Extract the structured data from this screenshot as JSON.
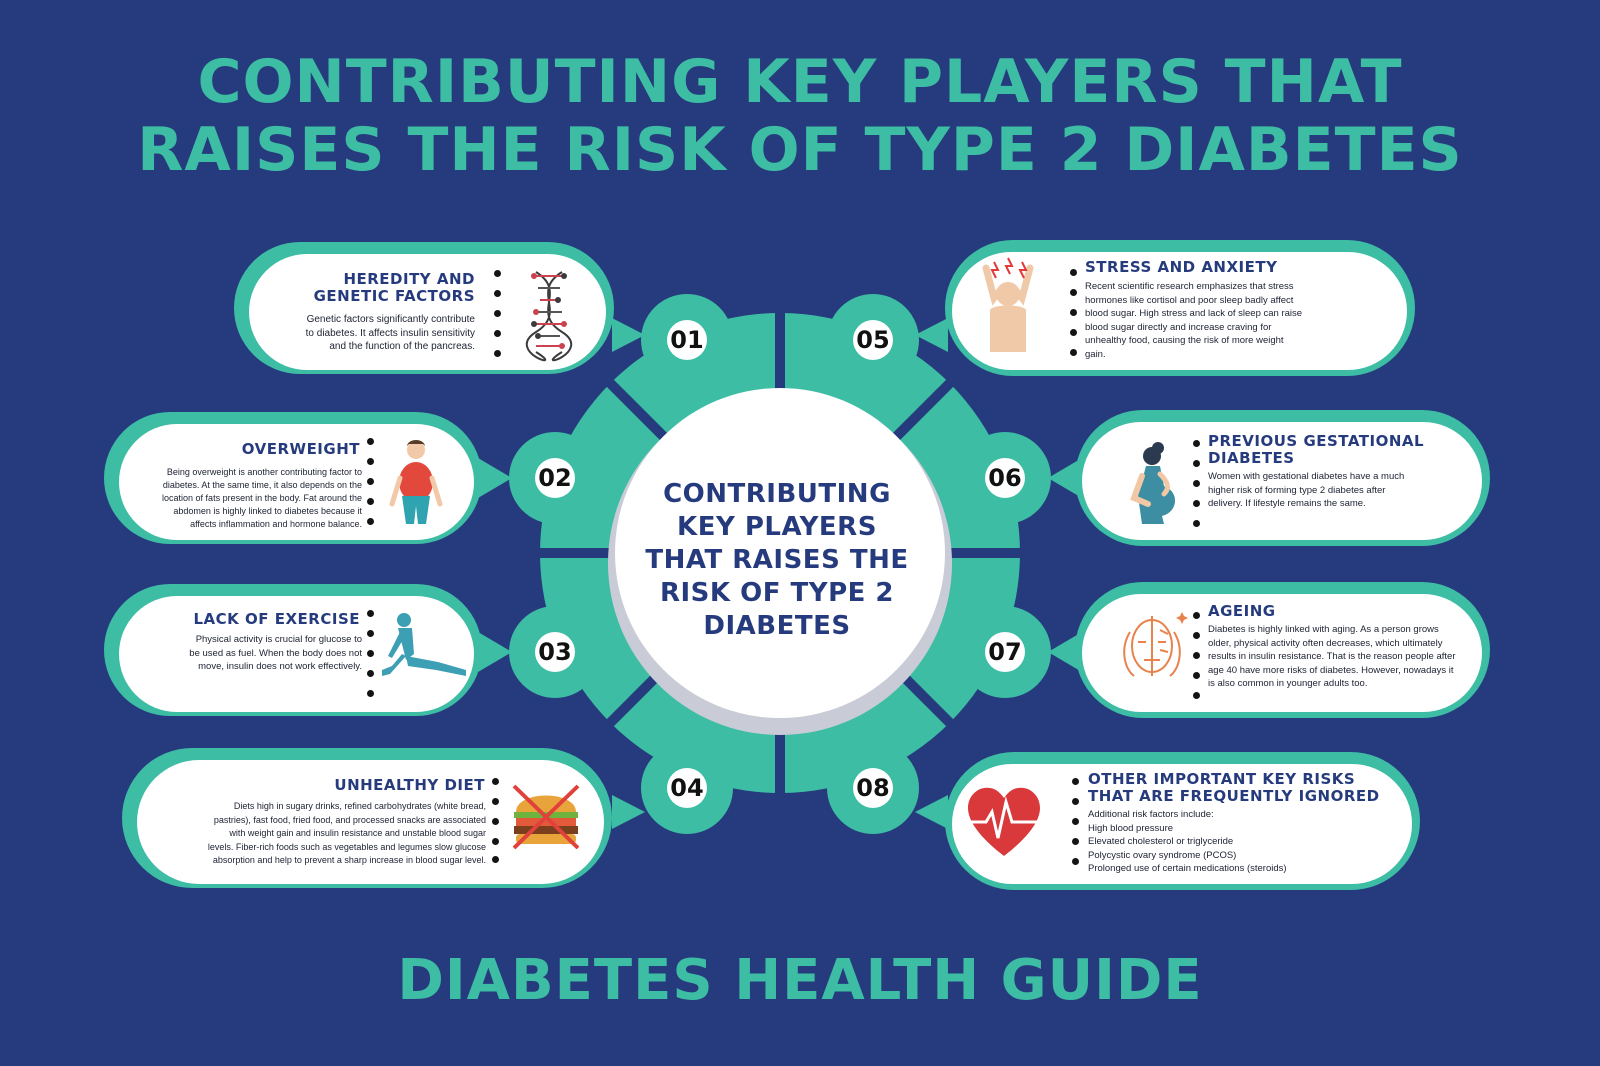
{
  "header": {
    "title_line1": "CONTRIBUTING KEY PLAYERS THAT",
    "title_line2": "RAISES THE RISK OF TYPE 2 DIABETES"
  },
  "center": {
    "lines": [
      "CONTRIBUTING",
      "KEY PLAYERS",
      "THAT RAISES THE",
      "RISK OF TYPE 2",
      "DIABETES"
    ]
  },
  "factors": [
    {
      "number": "01",
      "title_lines": [
        "HEREDITY AND",
        "GENETIC FACTORS"
      ],
      "icon": "dna-icon",
      "text_lines": [
        "Genetic factors significantly contribute",
        "to diabetes. It affects insulin sensitivity",
        "and the function of the pancreas."
      ]
    },
    {
      "number": "02",
      "title_lines": [
        "OVERWEIGHT"
      ],
      "icon": "overweight-person-icon",
      "text_lines": [
        "Being overweight is another contributing factor to",
        "diabetes. At the same time, it also depends on the",
        "location of fats present in the body. Fat around the",
        "abdomen is highly linked to diabetes because it",
        "affects inflammation and hormone balance."
      ]
    },
    {
      "number": "03",
      "title_lines": [
        "LACK OF EXERCISE"
      ],
      "icon": "stretching-person-icon",
      "text_lines": [
        "Physical activity is crucial for glucose to",
        "be used as fuel. When the body does not",
        "move, insulin does not work effectively."
      ]
    },
    {
      "number": "04",
      "title_lines": [
        "UNHEALTHY DIET"
      ],
      "icon": "crossed-burger-icon",
      "text_lines": [
        "Diets high in sugary drinks, refined carbohydrates (white bread,",
        "pastries), fast food, fried food, and processed snacks are associated",
        "with weight gain and insulin resistance and unstable blood sugar",
        "levels. Fiber-rich foods such as vegetables and legumes slow glucose",
        "absorption and help to prevent a sharp increase in blood sugar level."
      ]
    },
    {
      "number": "05",
      "title_lines": [
        "STRESS AND ANXIETY"
      ],
      "icon": "stressed-person-icon",
      "text_lines": [
        "Recent scientific research emphasizes that stress",
        "hormones like cortisol and poor sleep badly affect",
        "blood sugar. High stress and lack of sleep can raise",
        "blood sugar directly and increase craving for",
        "unhealthy food, causing the risk of more weight",
        "gain."
      ]
    },
    {
      "number": "06",
      "title_lines": [
        "PREVIOUS GESTATIONAL",
        "DIABETES"
      ],
      "icon": "pregnant-woman-icon",
      "text_lines": [
        "Women with gestational diabetes have a much",
        "higher risk of forming type 2 diabetes after",
        "delivery. If lifestyle remains the same."
      ]
    },
    {
      "number": "07",
      "title_lines": [
        "AGEING"
      ],
      "icon": "aging-face-icon",
      "text_lines": [
        "Diabetes is highly linked with aging. As a person grows",
        "older, physical activity often decreases, which ultimately",
        "results in insulin resistance. That is the reason people after",
        "age 40 have more risks of diabetes. However, nowadays it",
        "is also common in younger adults too."
      ]
    },
    {
      "number": "08",
      "title_lines": [
        "OTHER IMPORTANT KEY RISKS",
        "THAT ARE FREQUENTLY IGNORED"
      ],
      "icon": "heartbeat-icon",
      "text_lines": [
        "Additional risk factors include:",
        "High blood pressure",
        "Elevated cholesterol or triglyceride",
        "Polycystic ovary syndrome (PCOS)",
        "Prolonged use of certain medications (steroids)"
      ]
    }
  ],
  "footer": {
    "label": "DIABETES HEALTH GUIDE"
  },
  "colors": {
    "background": "#263b7d",
    "teal": "#3dbda4",
    "navy_text": "#263b7d",
    "white": "#ffffff"
  }
}
